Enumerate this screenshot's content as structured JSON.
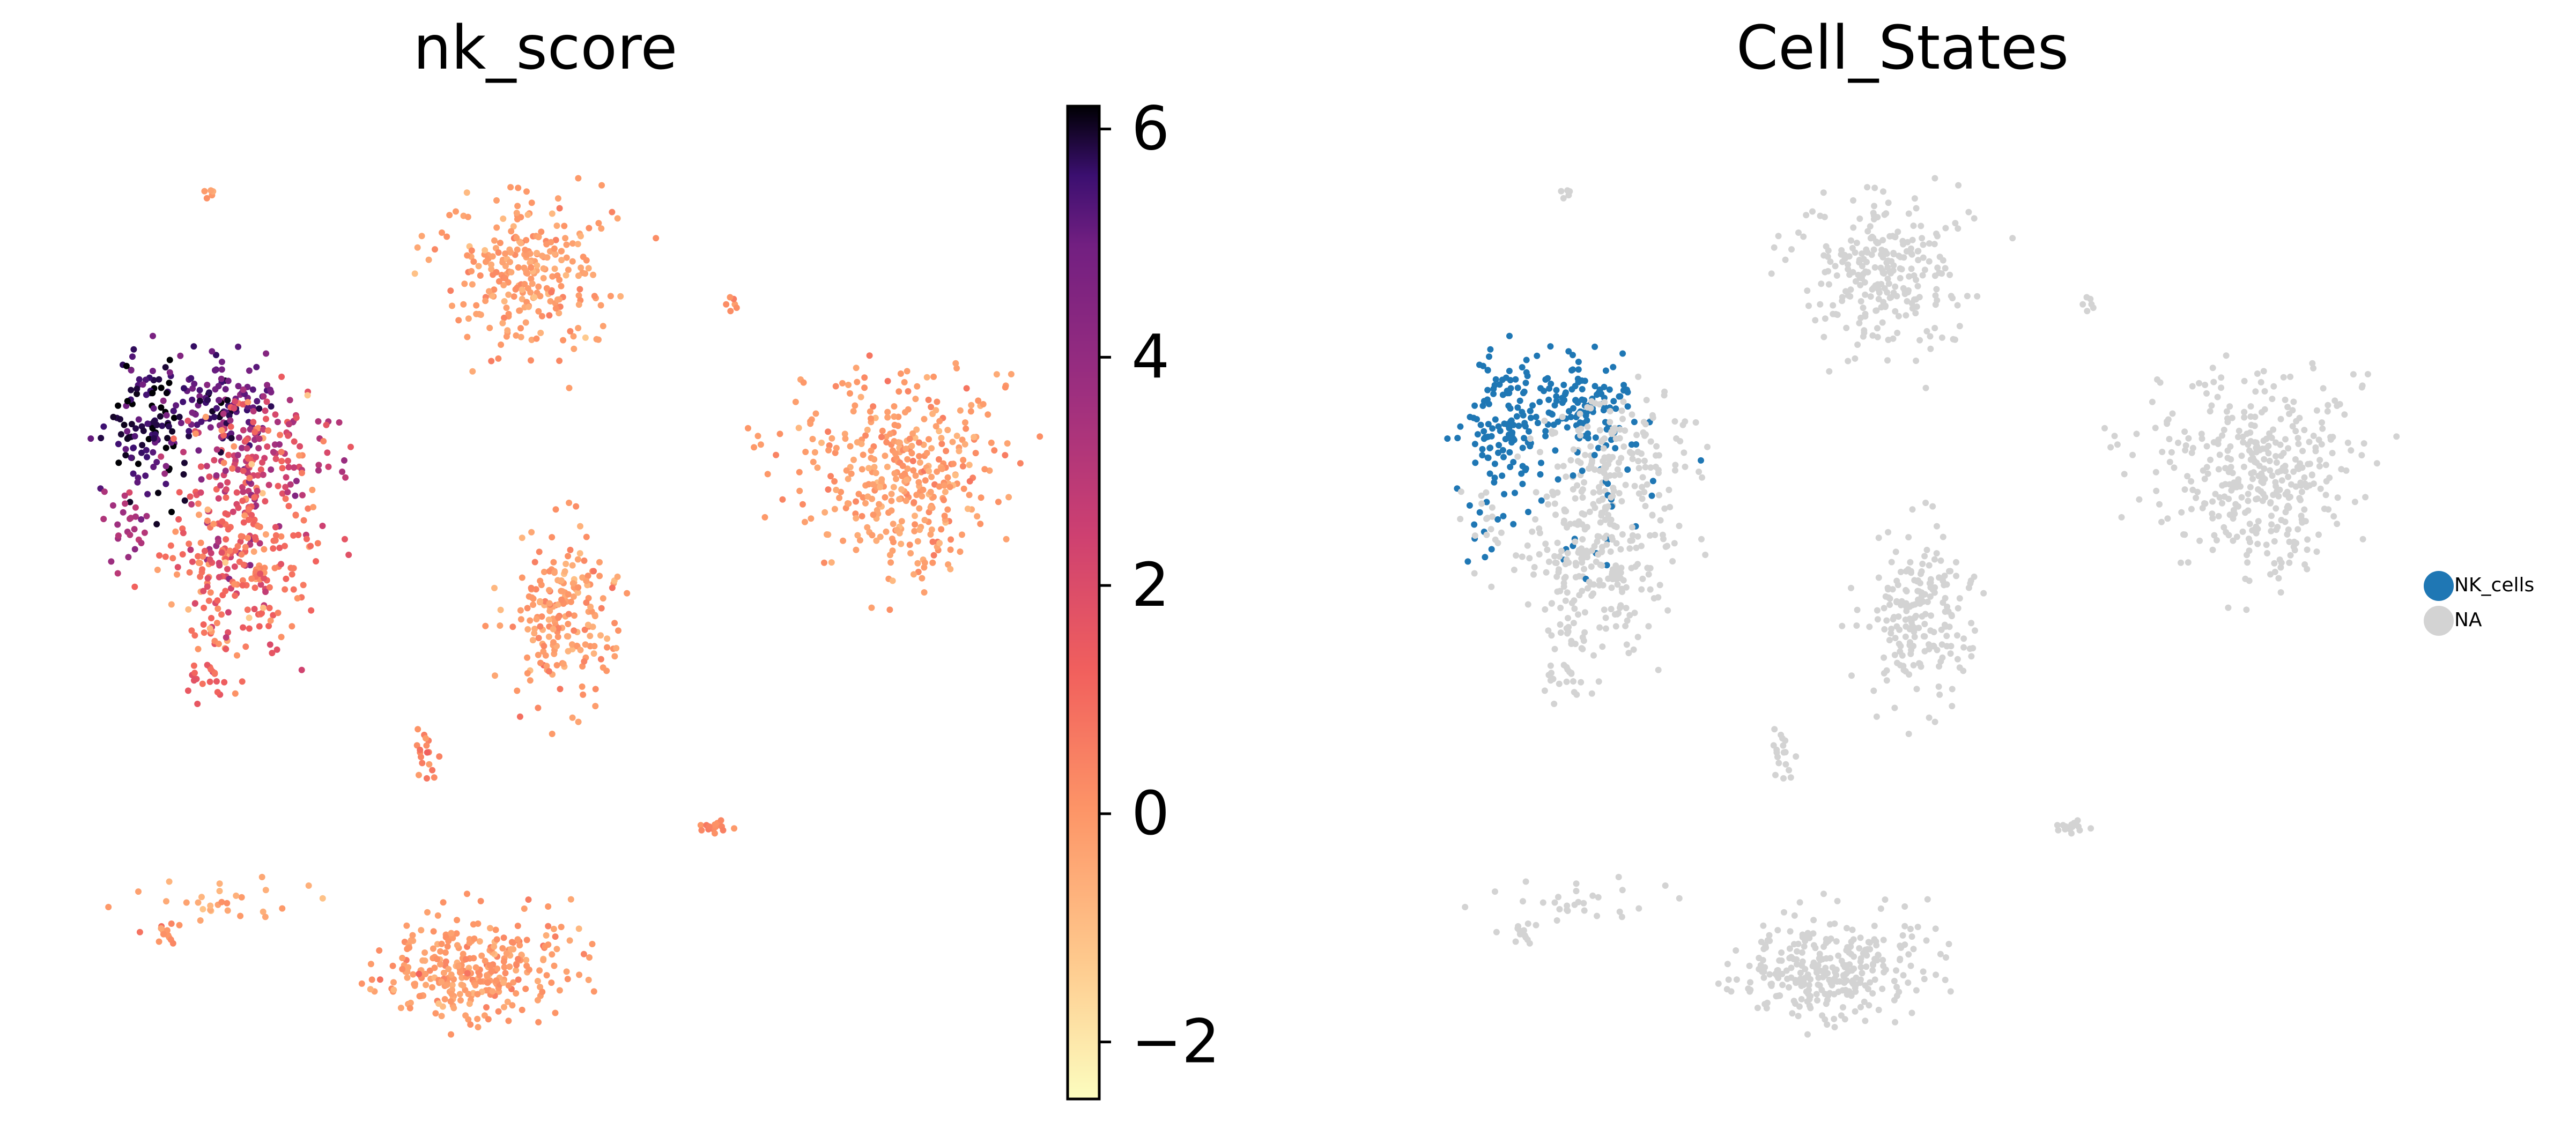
{
  "chart_data": [
    {
      "type": "scatter",
      "title": "nk_score",
      "xlabel": "",
      "ylabel": "",
      "colorbar": {
        "colormap": "magma_r",
        "range": [
          -2.5,
          6.2
        ],
        "ticks": [
          6,
          4,
          2,
          0,
          -2
        ],
        "tick_labels": [
          "6",
          "4",
          "2",
          "0",
          "−2"
        ]
      },
      "clusters": [
        {
          "cx": -5.75,
          "cy": 2.55,
          "sx": 0.22,
          "sy": 0.48,
          "n": 120,
          "score_mean": 5.8,
          "score_sd": 0.5
        },
        {
          "cx": -4.9,
          "cy": 2.9,
          "sx": 0.32,
          "sy": 0.3,
          "n": 110,
          "score_mean": 5.2,
          "score_sd": 0.6
        },
        {
          "cx": -5.9,
          "cy": 1.25,
          "sx": 0.12,
          "sy": 0.22,
          "n": 25,
          "score_mean": 3.2,
          "score_sd": 0.6
        },
        {
          "cx": -4.55,
          "cy": 1.9,
          "sx": 0.45,
          "sy": 0.45,
          "n": 150,
          "score_mean": 2.6,
          "score_sd": 1.1
        },
        {
          "cx": -4.65,
          "cy": 0.75,
          "sx": 0.38,
          "sy": 0.55,
          "n": 230,
          "score_mean": 0.9,
          "score_sd": 0.9
        },
        {
          "cx": -4.95,
          "cy": -0.7,
          "sx": 0.12,
          "sy": 0.14,
          "n": 18,
          "score_mean": 1.2,
          "score_sd": 0.5
        },
        {
          "cx": -4.3,
          "cy": 2.4,
          "sx": 0.3,
          "sy": 0.3,
          "n": 60,
          "score_mean": 1.8,
          "score_sd": 1.2
        },
        {
          "cx": -1.35,
          "cy": 4.55,
          "sx": 0.45,
          "sy": 0.5,
          "n": 260,
          "score_mean": -0.2,
          "score_sd": 0.35
        },
        {
          "cx": 2.9,
          "cy": 1.9,
          "sx": 0.62,
          "sy": 0.62,
          "n": 380,
          "score_mean": -0.2,
          "score_sd": 0.35
        },
        {
          "cx": -0.9,
          "cy": 0.1,
          "sx": 0.3,
          "sy": 0.55,
          "n": 200,
          "score_mean": -0.1,
          "score_sd": 0.4
        },
        {
          "cx": -1.9,
          "cy": -4.35,
          "sx": 0.55,
          "sy": 0.35,
          "n": 300,
          "score_mean": -0.1,
          "score_sd": 0.35
        },
        {
          "cx": -5.5,
          "cy": -3.9,
          "sx": 0.12,
          "sy": 0.08,
          "n": 14,
          "score_mean": 0.2,
          "score_sd": 0.4
        },
        {
          "cx": -4.9,
          "cy": -3.5,
          "sx": 0.55,
          "sy": 0.12,
          "n": 28,
          "score_mean": -0.5,
          "score_sd": 0.3
        },
        {
          "cx": -2.5,
          "cy": -1.6,
          "sx": 0.07,
          "sy": 0.2,
          "n": 18,
          "score_mean": 0.3,
          "score_sd": 0.6
        },
        {
          "cx": 0.8,
          "cy": -2.55,
          "sx": 0.1,
          "sy": 0.06,
          "n": 14,
          "score_mean": 0.1,
          "score_sd": 0.3
        },
        {
          "cx": 1.0,
          "cy": 4.15,
          "sx": 0.05,
          "sy": 0.08,
          "n": 6,
          "score_mean": 0.2,
          "score_sd": 0.3
        },
        {
          "cx": -5.0,
          "cy": 5.55,
          "sx": 0.04,
          "sy": 0.04,
          "n": 5,
          "score_mean": 0.0,
          "score_sd": 0.3
        }
      ],
      "seed": 17,
      "xlim": [
        -6.6,
        4.3
      ],
      "ylim": [
        -5.6,
        6.2
      ]
    },
    {
      "type": "scatter",
      "title": "Cell_States",
      "xlabel": "",
      "ylabel": "",
      "legend": {
        "position": "right",
        "entries": [
          {
            "label": "NK_cells",
            "color": "#1f77b4"
          },
          {
            "label": "NA",
            "color": "#d3d3d3"
          }
        ]
      },
      "colors": {
        "NK_cells": "#1f77b4",
        "NA": "#d3d3d3"
      }
    }
  ]
}
